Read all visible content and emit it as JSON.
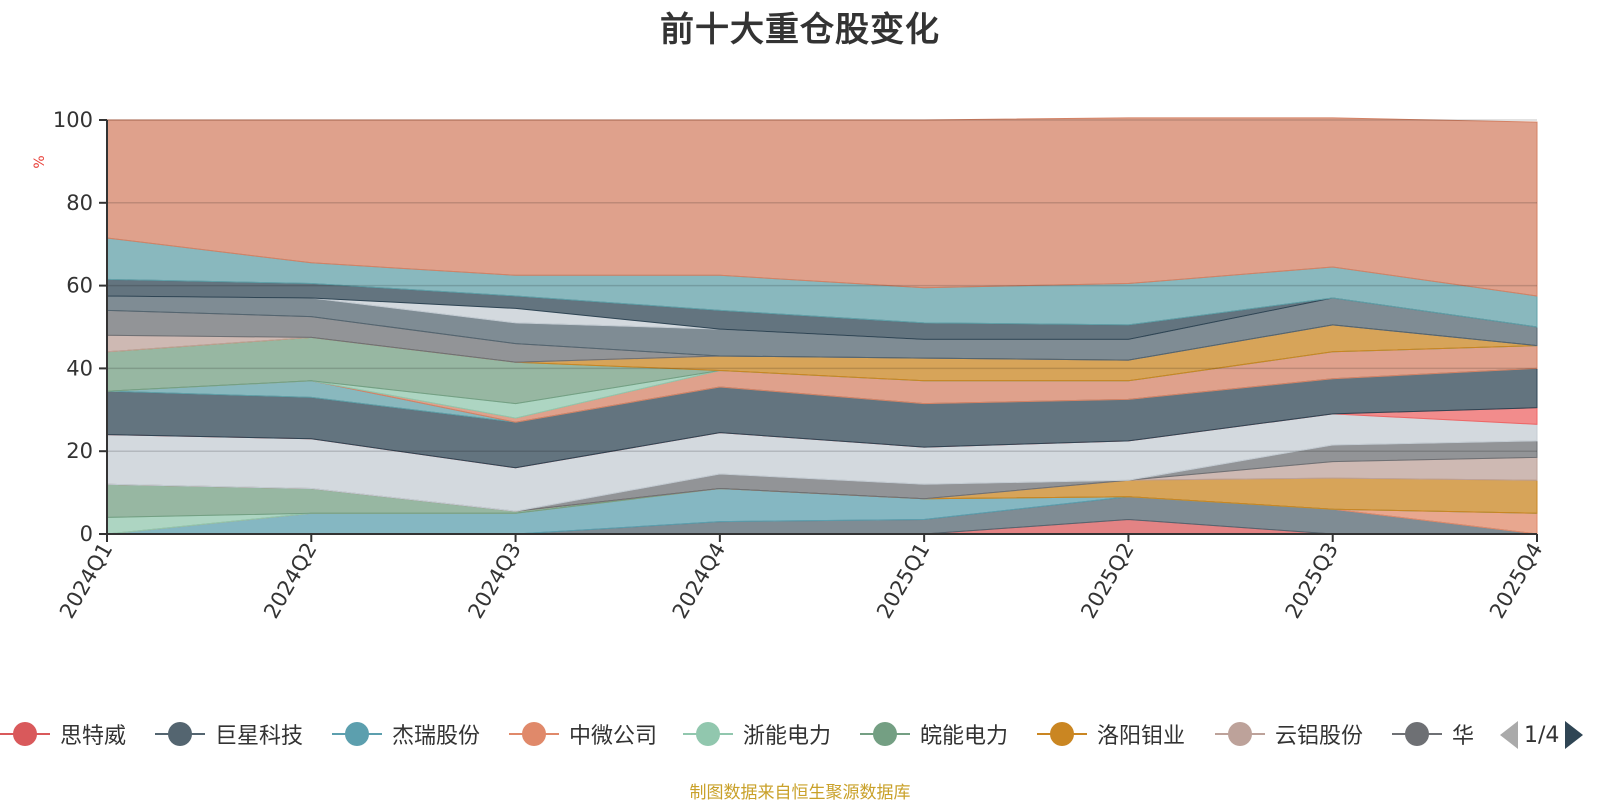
{
  "chart_data": {
    "type": "area",
    "stacked": true,
    "title": "前十大重仓股变化",
    "ylabel": "%",
    "ylim": [
      0,
      100
    ],
    "yticks": [
      0,
      20,
      40,
      60,
      80,
      100
    ],
    "categories": [
      "2024Q1",
      "2024Q2",
      "2024Q3",
      "2024Q4",
      "2025Q1",
      "2025Q2",
      "2025Q3",
      "2025Q4"
    ],
    "grid": true,
    "series": [
      {
        "name": "思特威",
        "color": "#d9595b",
        "values": [
          0,
          0,
          0,
          0,
          0,
          3.5,
          0,
          0
        ]
      },
      {
        "name": "巨星科技",
        "color": "#546570",
        "values": [
          0,
          0,
          0,
          3,
          3.5,
          5.5,
          6,
          0
        ]
      },
      {
        "name": "杰瑞股份",
        "color": "#5c9fae",
        "values": [
          0,
          5,
          5,
          8,
          5,
          0,
          0,
          0
        ]
      },
      {
        "name": "中微公司",
        "color": "#e0896a",
        "values": [
          0,
          0,
          0,
          0,
          0,
          0,
          0,
          5
        ]
      },
      {
        "name": "浙能电力",
        "color": "#91c7ae",
        "values": [
          4,
          0,
          0,
          0,
          0,
          0,
          0,
          0
        ]
      },
      {
        "name": "皖能电力",
        "color": "#749f83",
        "values": [
          8,
          6,
          0.5,
          0,
          0,
          0,
          0,
          0
        ]
      },
      {
        "name": "洛阳钼业",
        "color": "#ca8622",
        "values": [
          0,
          0,
          0,
          0,
          0,
          4,
          7.5,
          8
        ]
      },
      {
        "name": "云铝股份",
        "color": "#bda29a",
        "values": [
          0,
          0,
          0,
          0,
          0,
          0,
          4,
          5.5
        ]
      },
      {
        "name": "华",
        "color": "#6e7074",
        "values": [
          0,
          0,
          0,
          3.5,
          3.5,
          0,
          4,
          4
        ]
      },
      {
        "name": "",
        "color": "#c4ccd3",
        "values": [
          12,
          12,
          10.5,
          10,
          9,
          9.5,
          7.5,
          4
        ]
      },
      {
        "name": "",
        "color": "#ee6666",
        "values": [
          0,
          0,
          0,
          0,
          0,
          0,
          0,
          4
        ]
      },
      {
        "name": "",
        "color": "#2f4554",
        "values": [
          10.5,
          10,
          11,
          11,
          10.5,
          10,
          8.5,
          9.5
        ]
      },
      {
        "name": "",
        "color": "#61a0a8",
        "values": [
          0,
          4,
          0,
          0,
          0,
          0,
          0,
          0
        ]
      },
      {
        "name": "",
        "color": "#d48265",
        "values": [
          0,
          0,
          1,
          4,
          5.5,
          4.5,
          6.5,
          5.5
        ]
      },
      {
        "name": "",
        "color": "#91c7ae",
        "values": [
          0,
          0,
          3.5,
          0,
          0,
          0,
          0,
          0
        ]
      },
      {
        "name": "",
        "color": "#749f83",
        "values": [
          9.5,
          10.5,
          10,
          0,
          0,
          0,
          0,
          0
        ]
      },
      {
        "name": "",
        "color": "#ca8622",
        "values": [
          0,
          0,
          0,
          3.5,
          5.5,
          5,
          6.5,
          0
        ]
      },
      {
        "name": "",
        "color": "#bda29a",
        "values": [
          4,
          0,
          0,
          0,
          0,
          0,
          0,
          0
        ]
      },
      {
        "name": "",
        "color": "#6e7074",
        "values": [
          6,
          5,
          4.5,
          0,
          0,
          0,
          0,
          0
        ]
      },
      {
        "name": "",
        "color": "#546570",
        "values": [
          3.5,
          4.5,
          5,
          6.5,
          4.5,
          5,
          6.5,
          4.5
        ]
      },
      {
        "name": "",
        "color": "#c4ccd3",
        "values": [
          0,
          0,
          3.5,
          0,
          0,
          0,
          0,
          0
        ]
      },
      {
        "name": "",
        "color": "#2f4554",
        "values": [
          4,
          3.5,
          3,
          4.5,
          4,
          3.5,
          0,
          0
        ]
      },
      {
        "name": "",
        "color": "#61a0a8",
        "values": [
          10,
          5,
          5,
          8.5,
          8.5,
          10,
          7.5,
          7.5
        ]
      },
      {
        "name": "",
        "color": "#d48265",
        "values": [
          28.5,
          34.5,
          37.5,
          37.5,
          40.5,
          40,
          36,
          42
        ]
      }
    ]
  },
  "legend": {
    "page_text": "1/4"
  },
  "source_note": "制图数据来自恒生聚源数据库"
}
